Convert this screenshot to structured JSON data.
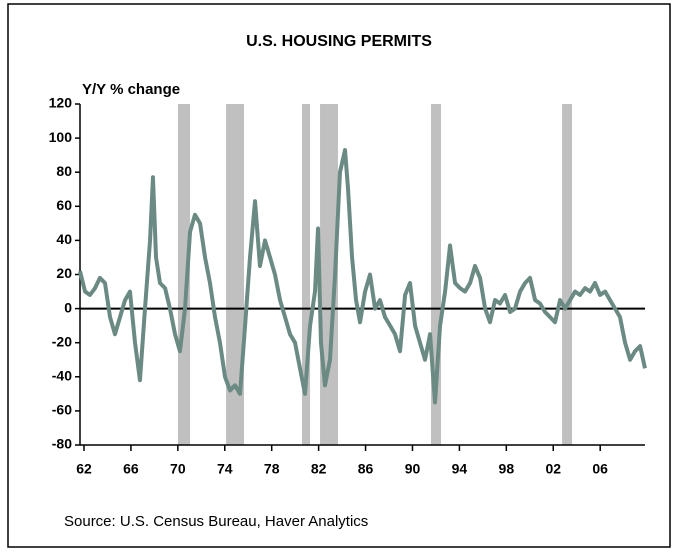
{
  "chart_data": {
    "type": "line",
    "title": "U.S. HOUSING PERMITS",
    "y_label": "Y/Y % change",
    "source": "Source: U.S. Census Bureau, Haver Analytics",
    "xlim": [
      1961.66,
      2009.82
    ],
    "xticks": [
      {
        "value": 1962,
        "label": "62"
      },
      {
        "value": 1966,
        "label": "66"
      },
      {
        "value": 1970,
        "label": "70"
      },
      {
        "value": 1974,
        "label": "74"
      },
      {
        "value": 1978,
        "label": "78"
      },
      {
        "value": 1982,
        "label": "82"
      },
      {
        "value": 1986,
        "label": "86"
      },
      {
        "value": 1990,
        "label": "90"
      },
      {
        "value": 1994,
        "label": "94"
      },
      {
        "value": 1998,
        "label": "98"
      },
      {
        "value": 2002,
        "label": "02"
      },
      {
        "value": 2006,
        "label": "06"
      }
    ],
    "ylim": [
      -80,
      120
    ],
    "yticks": [
      -80,
      -60,
      -40,
      -20,
      0,
      20,
      40,
      60,
      80,
      100,
      120
    ],
    "shaded_periods": [
      [
        1970.01,
        1971.04
      ],
      [
        1974.11,
        1975.64
      ],
      [
        1980.58,
        1981.27
      ],
      [
        1982.12,
        1983.65
      ],
      [
        1991.58,
        1992.43
      ],
      [
        2002.75,
        2003.6
      ]
    ],
    "shade_color": "#c0c0c0",
    "x": [
      1961.66,
      1962.09,
      1962.51,
      1962.94,
      1963.36,
      1963.79,
      1964.22,
      1964.64,
      1965.07,
      1965.5,
      1965.92,
      1966.35,
      1966.77,
      1967.2,
      1967.63,
      1967.88,
      1968.14,
      1968.48,
      1968.91,
      1969.33,
      1969.76,
      1970.18,
      1970.61,
      1971.04,
      1971.46,
      1971.89,
      1972.32,
      1972.74,
      1973.17,
      1973.59,
      1974.02,
      1974.45,
      1974.87,
      1975.3,
      1975.73,
      1976.15,
      1976.58,
      1977.0,
      1977.43,
      1977.86,
      1978.28,
      1978.71,
      1979.14,
      1979.56,
      1979.99,
      1980.41,
      1980.84,
      1981.27,
      1981.69,
      1981.95,
      1982.2,
      1982.54,
      1982.97,
      1983.4,
      1983.82,
      1984.25,
      1984.51,
      1984.85,
      1985.19,
      1985.53,
      1985.96,
      1986.38,
      1986.81,
      1987.23,
      1987.66,
      1988.09,
      1988.51,
      1988.94,
      1989.37,
      1989.79,
      1990.22,
      1990.64,
      1991.07,
      1991.5,
      1991.92,
      1992.35,
      1992.78,
      1993.2,
      1993.63,
      1994.05,
      1994.48,
      1994.91,
      1995.33,
      1995.76,
      1996.19,
      1996.61,
      1997.04,
      1997.46,
      1997.89,
      1998.32,
      1998.74,
      1999.17,
      1999.6,
      2000.02,
      2000.45,
      2000.87,
      2001.3,
      2001.73,
      2002.15,
      2002.58,
      2003.01,
      2003.43,
      2003.86,
      2004.28,
      2004.71,
      2005.14,
      2005.56,
      2005.99,
      2006.42,
      2006.84,
      2007.27,
      2007.69,
      2008.12,
      2008.55,
      2008.97,
      2009.4,
      2009.82
    ],
    "series": [
      {
        "name": "U.S. Housing Permits",
        "color": "#6a8a83",
        "values": [
          22,
          10,
          8,
          12,
          18,
          15,
          -5,
          -15,
          -5,
          5,
          10,
          -20,
          -42,
          0,
          40,
          77,
          30,
          15,
          12,
          0,
          -15,
          -25,
          0,
          45,
          55,
          50,
          30,
          15,
          -5,
          -20,
          -40,
          -48,
          -45,
          -50,
          -10,
          30,
          63,
          25,
          40,
          30,
          20,
          5,
          -5,
          -15,
          -20,
          -35,
          -50,
          -10,
          10,
          47,
          -20,
          -45,
          -30,
          20,
          80,
          93,
          70,
          30,
          5,
          -8,
          10,
          20,
          0,
          5,
          -5,
          -10,
          -15,
          -25,
          8,
          15,
          -10,
          -20,
          -30,
          -15,
          -55,
          -10,
          10,
          37,
          15,
          12,
          10,
          15,
          25,
          18,
          0,
          -8,
          5,
          3,
          8,
          -2,
          0,
          10,
          15,
          18,
          5,
          3,
          -2,
          -5,
          -8,
          5,
          0,
          5,
          10,
          8,
          12,
          10,
          15,
          8,
          10,
          5,
          0,
          -5,
          -20,
          -30,
          -25,
          -22,
          -35
        ]
      }
    ]
  }
}
